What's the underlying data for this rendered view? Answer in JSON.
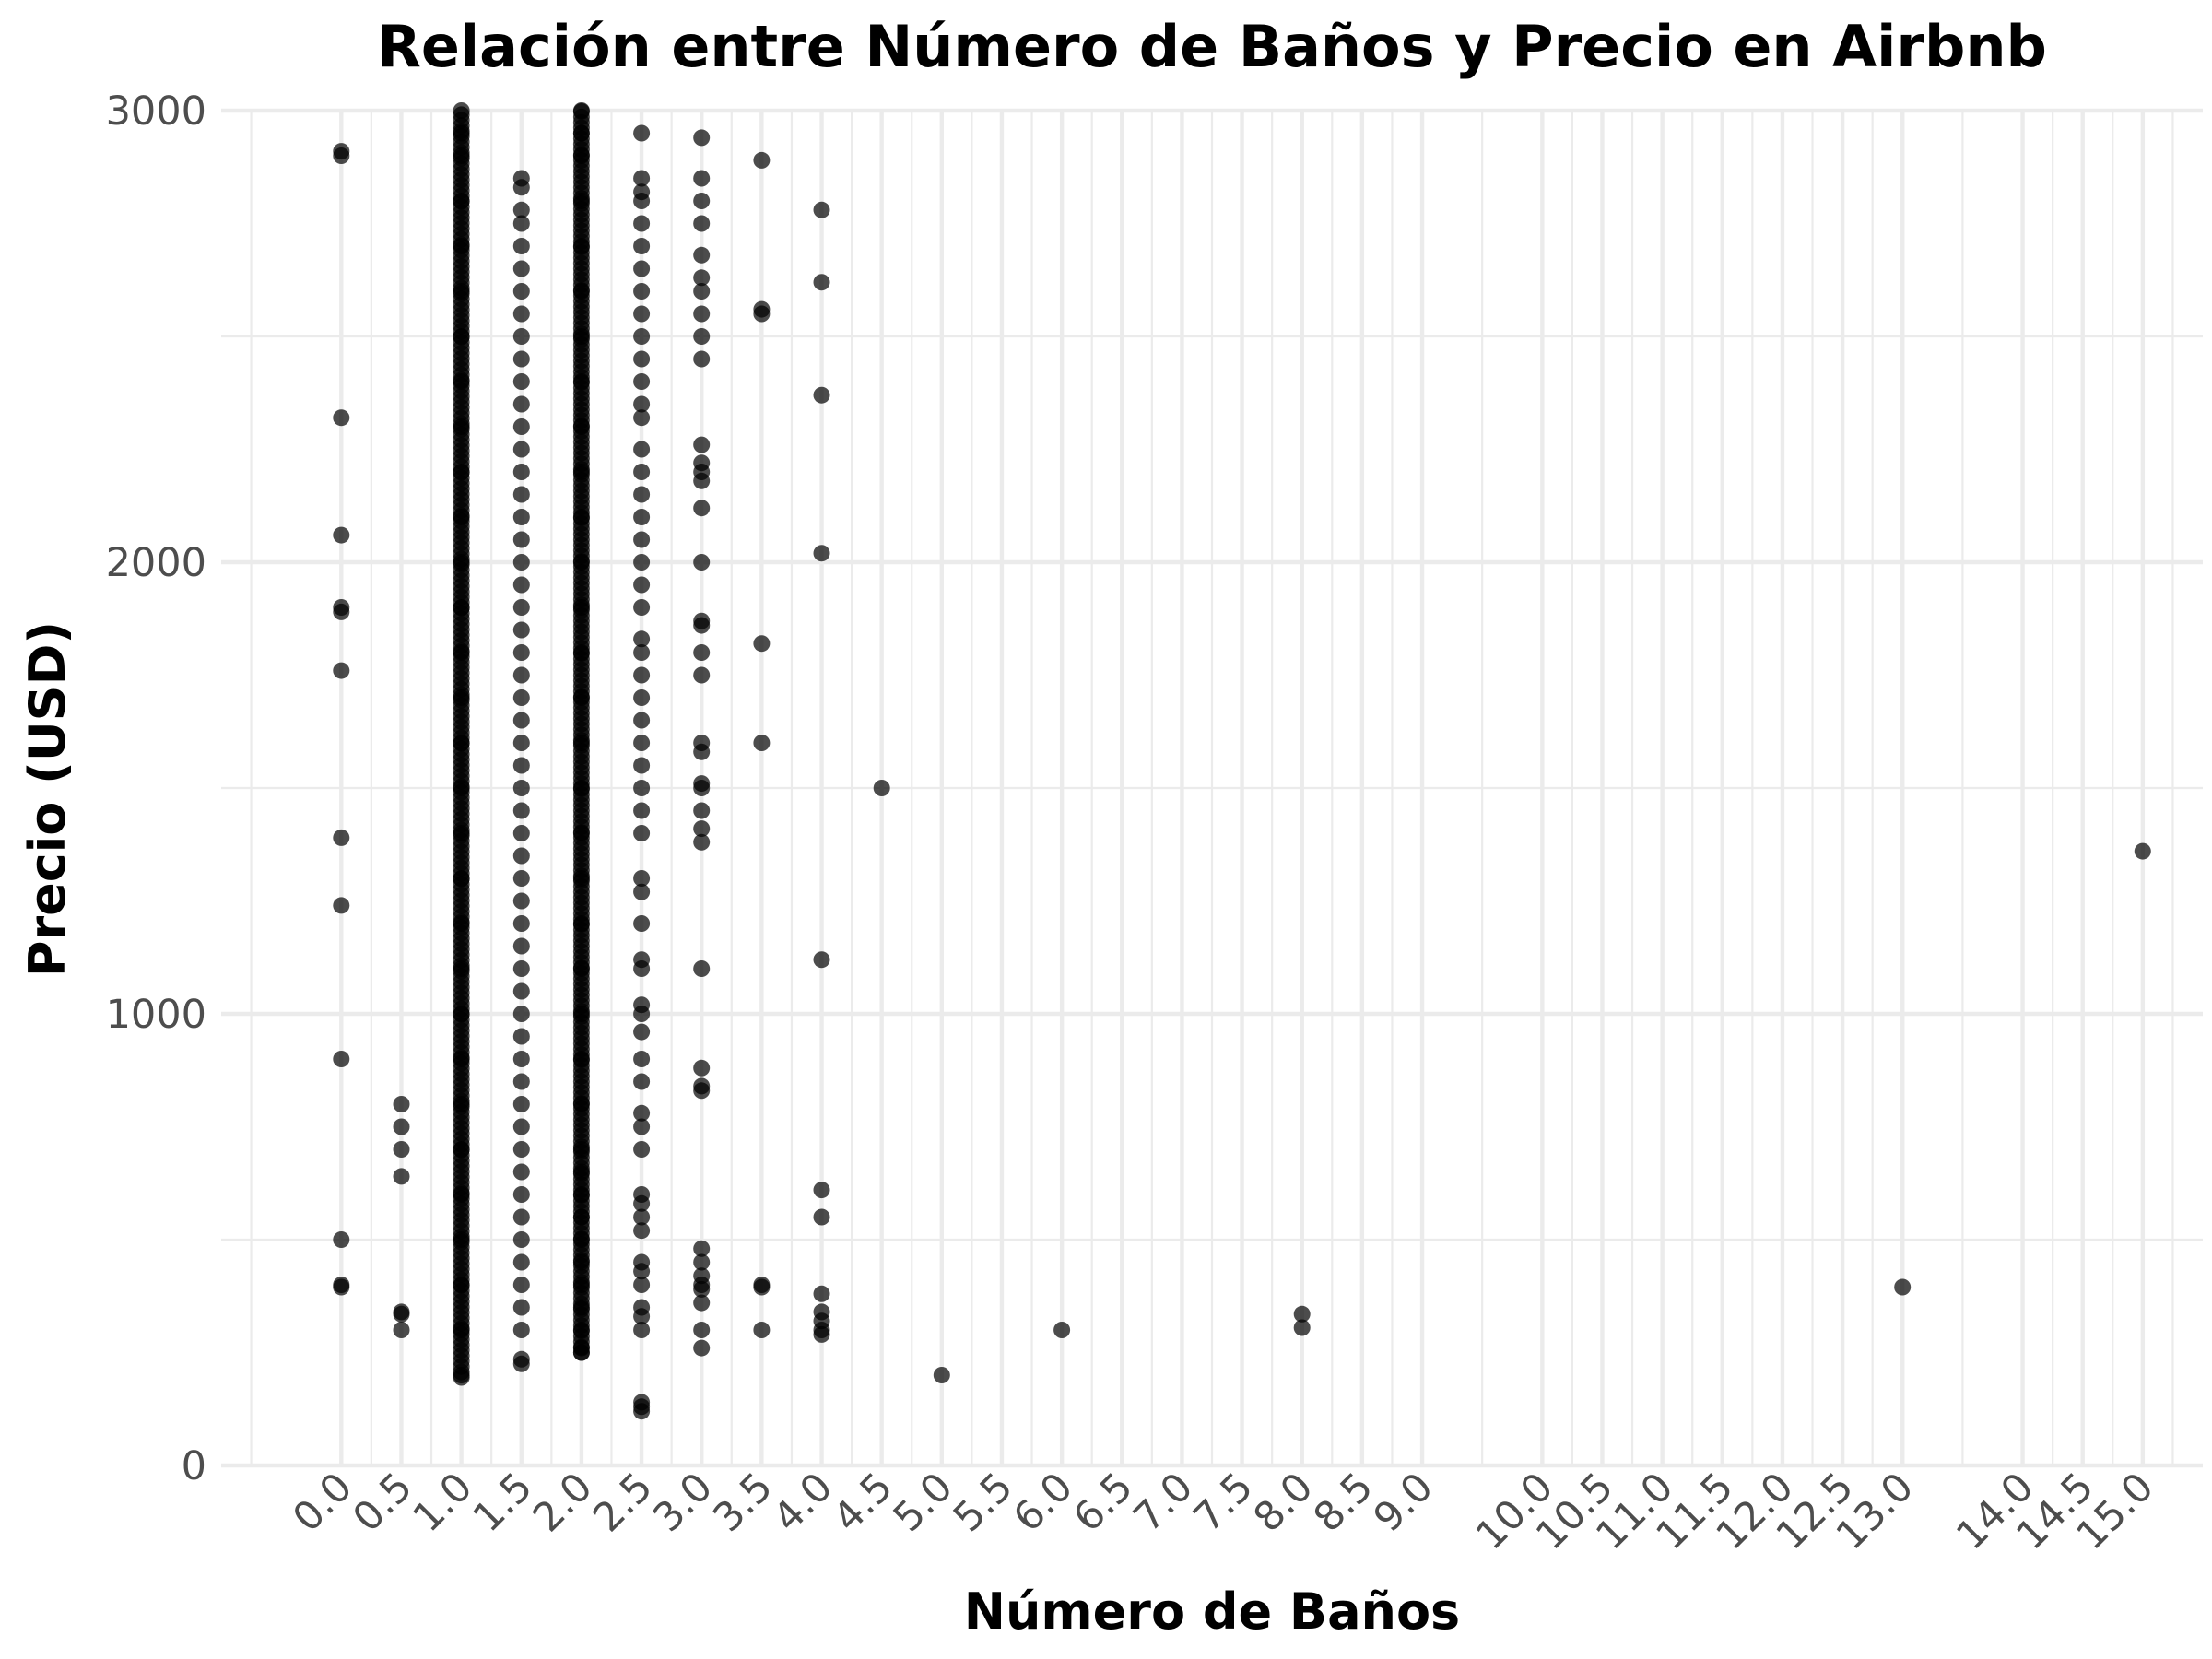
{
  "chart_data": {
    "type": "scatter",
    "title": "Relación entre Número de Baños y Precio en Airbnb",
    "xlabel": "Número de Baños",
    "ylabel": "Precio (USD)",
    "ylim": [
      0,
      3000
    ],
    "xlim": [
      -1.0,
      15.5
    ],
    "grid": true,
    "legend": "none",
    "x_ticks": [
      "0.0",
      "0.5",
      "1.0",
      "1.5",
      "2.0",
      "2.5",
      "3.0",
      "3.5",
      "4.0",
      "4.5",
      "5.0",
      "5.5",
      "6.0",
      "6.5",
      "7.0",
      "7.5",
      "8.0",
      "8.5",
      "9.0",
      "10.0",
      "10.5",
      "11.0",
      "11.5",
      "12.0",
      "12.5",
      "13.0",
      "14.0",
      "14.5",
      "15.0"
    ],
    "y_ticks": [
      "0",
      "1000",
      "2000",
      "3000"
    ],
    "point_color": "#000000",
    "points": [
      {
        "x": 0,
        "y": 2910
      },
      {
        "x": 0,
        "y": 2900
      },
      {
        "x": 0,
        "y": 2320
      },
      {
        "x": 0,
        "y": 2060
      },
      {
        "x": 0,
        "y": 1900
      },
      {
        "x": 0,
        "y": 1890
      },
      {
        "x": 0,
        "y": 1760
      },
      {
        "x": 0,
        "y": 1390
      },
      {
        "x": 0,
        "y": 1240
      },
      {
        "x": 0,
        "y": 900
      },
      {
        "x": 0,
        "y": 500
      },
      {
        "x": 0,
        "y": 400
      },
      {
        "x": 0,
        "y": 395
      },
      {
        "x": 0.5,
        "y": 800
      },
      {
        "x": 0.5,
        "y": 750
      },
      {
        "x": 0.5,
        "y": 700
      },
      {
        "x": 0.5,
        "y": 640
      },
      {
        "x": 0.5,
        "y": 340
      },
      {
        "x": 0.5,
        "y": 335
      },
      {
        "x": 0.5,
        "y": 300
      },
      {
        "x": 1.0,
        "y": 3000
      },
      {
        "x": 1.0,
        "y": 2950
      },
      {
        "x": 1.0,
        "y": 2900
      },
      {
        "x": 1.0,
        "y": 2800
      },
      {
        "x": 1.0,
        "y": 2700
      },
      {
        "x": 1.0,
        "y": 2600
      },
      {
        "x": 1.0,
        "y": 2500
      },
      {
        "x": 1.0,
        "y": 2400
      },
      {
        "x": 1.0,
        "y": 2300
      },
      {
        "x": 1.0,
        "y": 2200
      },
      {
        "x": 1.0,
        "y": 2100
      },
      {
        "x": 1.0,
        "y": 2000
      },
      {
        "x": 1.0,
        "y": 1900
      },
      {
        "x": 1.0,
        "y": 1800
      },
      {
        "x": 1.0,
        "y": 1700
      },
      {
        "x": 1.0,
        "y": 1600
      },
      {
        "x": 1.0,
        "y": 1500
      },
      {
        "x": 1.0,
        "y": 1400
      },
      {
        "x": 1.0,
        "y": 1300
      },
      {
        "x": 1.0,
        "y": 1200
      },
      {
        "x": 1.0,
        "y": 1100
      },
      {
        "x": 1.0,
        "y": 1000
      },
      {
        "x": 1.0,
        "y": 900
      },
      {
        "x": 1.0,
        "y": 800
      },
      {
        "x": 1.0,
        "y": 700
      },
      {
        "x": 1.0,
        "y": 600
      },
      {
        "x": 1.0,
        "y": 500
      },
      {
        "x": 1.0,
        "y": 400
      },
      {
        "x": 1.0,
        "y": 300
      },
      {
        "x": 1.0,
        "y": 200
      },
      {
        "x": 1.5,
        "y": 2850
      },
      {
        "x": 1.5,
        "y": 2830
      },
      {
        "x": 1.5,
        "y": 2780
      },
      {
        "x": 1.5,
        "y": 2750
      },
      {
        "x": 1.5,
        "y": 2700
      },
      {
        "x": 1.5,
        "y": 2650
      },
      {
        "x": 1.5,
        "y": 2600
      },
      {
        "x": 1.5,
        "y": 2550
      },
      {
        "x": 1.5,
        "y": 2500
      },
      {
        "x": 1.5,
        "y": 2450
      },
      {
        "x": 1.5,
        "y": 2400
      },
      {
        "x": 1.5,
        "y": 2350
      },
      {
        "x": 1.5,
        "y": 2300
      },
      {
        "x": 1.5,
        "y": 2250
      },
      {
        "x": 1.5,
        "y": 2200
      },
      {
        "x": 1.5,
        "y": 2150
      },
      {
        "x": 1.5,
        "y": 2100
      },
      {
        "x": 1.5,
        "y": 2050
      },
      {
        "x": 1.5,
        "y": 2000
      },
      {
        "x": 1.5,
        "y": 1950
      },
      {
        "x": 1.5,
        "y": 1900
      },
      {
        "x": 1.5,
        "y": 1850
      },
      {
        "x": 1.5,
        "y": 1800
      },
      {
        "x": 1.5,
        "y": 1750
      },
      {
        "x": 1.5,
        "y": 1700
      },
      {
        "x": 1.5,
        "y": 1650
      },
      {
        "x": 1.5,
        "y": 1600
      },
      {
        "x": 1.5,
        "y": 1550
      },
      {
        "x": 1.5,
        "y": 1500
      },
      {
        "x": 1.5,
        "y": 1450
      },
      {
        "x": 1.5,
        "y": 1400
      },
      {
        "x": 1.5,
        "y": 1350
      },
      {
        "x": 1.5,
        "y": 1300
      },
      {
        "x": 1.5,
        "y": 1250
      },
      {
        "x": 1.5,
        "y": 1200
      },
      {
        "x": 1.5,
        "y": 1150
      },
      {
        "x": 1.5,
        "y": 1100
      },
      {
        "x": 1.5,
        "y": 1050
      },
      {
        "x": 1.5,
        "y": 1000
      },
      {
        "x": 1.5,
        "y": 950
      },
      {
        "x": 1.5,
        "y": 900
      },
      {
        "x": 1.5,
        "y": 850
      },
      {
        "x": 1.5,
        "y": 800
      },
      {
        "x": 1.5,
        "y": 750
      },
      {
        "x": 1.5,
        "y": 700
      },
      {
        "x": 1.5,
        "y": 650
      },
      {
        "x": 1.5,
        "y": 600
      },
      {
        "x": 1.5,
        "y": 550
      },
      {
        "x": 1.5,
        "y": 500
      },
      {
        "x": 1.5,
        "y": 450
      },
      {
        "x": 1.5,
        "y": 400
      },
      {
        "x": 1.5,
        "y": 350
      },
      {
        "x": 1.5,
        "y": 300
      },
      {
        "x": 1.5,
        "y": 235
      },
      {
        "x": 1.5,
        "y": 225
      },
      {
        "x": 2.0,
        "y": 3000
      },
      {
        "x": 2.0,
        "y": 2950
      },
      {
        "x": 2.0,
        "y": 2900
      },
      {
        "x": 2.0,
        "y": 2800
      },
      {
        "x": 2.0,
        "y": 2700
      },
      {
        "x": 2.0,
        "y": 2600
      },
      {
        "x": 2.0,
        "y": 2500
      },
      {
        "x": 2.0,
        "y": 2400
      },
      {
        "x": 2.0,
        "y": 2300
      },
      {
        "x": 2.0,
        "y": 2200
      },
      {
        "x": 2.0,
        "y": 2100
      },
      {
        "x": 2.0,
        "y": 2000
      },
      {
        "x": 2.0,
        "y": 1900
      },
      {
        "x": 2.0,
        "y": 1800
      },
      {
        "x": 2.0,
        "y": 1700
      },
      {
        "x": 2.0,
        "y": 1600
      },
      {
        "x": 2.0,
        "y": 1500
      },
      {
        "x": 2.0,
        "y": 1400
      },
      {
        "x": 2.0,
        "y": 1300
      },
      {
        "x": 2.0,
        "y": 1200
      },
      {
        "x": 2.0,
        "y": 1100
      },
      {
        "x": 2.0,
        "y": 1000
      },
      {
        "x": 2.0,
        "y": 900
      },
      {
        "x": 2.0,
        "y": 800
      },
      {
        "x": 2.0,
        "y": 700
      },
      {
        "x": 2.0,
        "y": 650
      },
      {
        "x": 2.0,
        "y": 600
      },
      {
        "x": 2.0,
        "y": 550
      },
      {
        "x": 2.0,
        "y": 500
      },
      {
        "x": 2.0,
        "y": 450
      },
      {
        "x": 2.0,
        "y": 400
      },
      {
        "x": 2.0,
        "y": 350
      },
      {
        "x": 2.0,
        "y": 300
      },
      {
        "x": 2.0,
        "y": 260
      },
      {
        "x": 2.0,
        "y": 250
      },
      {
        "x": 2.5,
        "y": 2950
      },
      {
        "x": 2.5,
        "y": 2850
      },
      {
        "x": 2.5,
        "y": 2820
      },
      {
        "x": 2.5,
        "y": 2800
      },
      {
        "x": 2.5,
        "y": 2750
      },
      {
        "x": 2.5,
        "y": 2700
      },
      {
        "x": 2.5,
        "y": 2650
      },
      {
        "x": 2.5,
        "y": 2600
      },
      {
        "x": 2.5,
        "y": 2550
      },
      {
        "x": 2.5,
        "y": 2500
      },
      {
        "x": 2.5,
        "y": 2450
      },
      {
        "x": 2.5,
        "y": 2400
      },
      {
        "x": 2.5,
        "y": 2350
      },
      {
        "x": 2.5,
        "y": 2320
      },
      {
        "x": 2.5,
        "y": 2250
      },
      {
        "x": 2.5,
        "y": 2200
      },
      {
        "x": 2.5,
        "y": 2150
      },
      {
        "x": 2.5,
        "y": 2100
      },
      {
        "x": 2.5,
        "y": 2050
      },
      {
        "x": 2.5,
        "y": 2000
      },
      {
        "x": 2.5,
        "y": 1950
      },
      {
        "x": 2.5,
        "y": 1900
      },
      {
        "x": 2.5,
        "y": 1830
      },
      {
        "x": 2.5,
        "y": 1800
      },
      {
        "x": 2.5,
        "y": 1750
      },
      {
        "x": 2.5,
        "y": 1700
      },
      {
        "x": 2.5,
        "y": 1650
      },
      {
        "x": 2.5,
        "y": 1600
      },
      {
        "x": 2.5,
        "y": 1550
      },
      {
        "x": 2.5,
        "y": 1500
      },
      {
        "x": 2.5,
        "y": 1450
      },
      {
        "x": 2.5,
        "y": 1400
      },
      {
        "x": 2.5,
        "y": 1300
      },
      {
        "x": 2.5,
        "y": 1270
      },
      {
        "x": 2.5,
        "y": 1200
      },
      {
        "x": 2.5,
        "y": 1120
      },
      {
        "x": 2.5,
        "y": 1100
      },
      {
        "x": 2.5,
        "y": 1020
      },
      {
        "x": 2.5,
        "y": 1000
      },
      {
        "x": 2.5,
        "y": 960
      },
      {
        "x": 2.5,
        "y": 900
      },
      {
        "x": 2.5,
        "y": 850
      },
      {
        "x": 2.5,
        "y": 780
      },
      {
        "x": 2.5,
        "y": 750
      },
      {
        "x": 2.5,
        "y": 700
      },
      {
        "x": 2.5,
        "y": 600
      },
      {
        "x": 2.5,
        "y": 580
      },
      {
        "x": 2.5,
        "y": 550
      },
      {
        "x": 2.5,
        "y": 520
      },
      {
        "x": 2.5,
        "y": 450
      },
      {
        "x": 2.5,
        "y": 430
      },
      {
        "x": 2.5,
        "y": 400
      },
      {
        "x": 2.5,
        "y": 350
      },
      {
        "x": 2.5,
        "y": 330
      },
      {
        "x": 2.5,
        "y": 300
      },
      {
        "x": 2.5,
        "y": 140
      },
      {
        "x": 2.5,
        "y": 130
      },
      {
        "x": 2.5,
        "y": 120
      },
      {
        "x": 3.0,
        "y": 2940
      },
      {
        "x": 3.0,
        "y": 2850
      },
      {
        "x": 3.0,
        "y": 2800
      },
      {
        "x": 3.0,
        "y": 2750
      },
      {
        "x": 3.0,
        "y": 2680
      },
      {
        "x": 3.0,
        "y": 2630
      },
      {
        "x": 3.0,
        "y": 2600
      },
      {
        "x": 3.0,
        "y": 2550
      },
      {
        "x": 3.0,
        "y": 2500
      },
      {
        "x": 3.0,
        "y": 2450
      },
      {
        "x": 3.0,
        "y": 2260
      },
      {
        "x": 3.0,
        "y": 2220
      },
      {
        "x": 3.0,
        "y": 2200
      },
      {
        "x": 3.0,
        "y": 2180
      },
      {
        "x": 3.0,
        "y": 2120
      },
      {
        "x": 3.0,
        "y": 2000
      },
      {
        "x": 3.0,
        "y": 1870
      },
      {
        "x": 3.0,
        "y": 1860
      },
      {
        "x": 3.0,
        "y": 1800
      },
      {
        "x": 3.0,
        "y": 1750
      },
      {
        "x": 3.0,
        "y": 1600
      },
      {
        "x": 3.0,
        "y": 1580
      },
      {
        "x": 3.0,
        "y": 1510
      },
      {
        "x": 3.0,
        "y": 1500
      },
      {
        "x": 3.0,
        "y": 1450
      },
      {
        "x": 3.0,
        "y": 1410
      },
      {
        "x": 3.0,
        "y": 1380
      },
      {
        "x": 3.0,
        "y": 1100
      },
      {
        "x": 3.0,
        "y": 880
      },
      {
        "x": 3.0,
        "y": 840
      },
      {
        "x": 3.0,
        "y": 830
      },
      {
        "x": 3.0,
        "y": 480
      },
      {
        "x": 3.0,
        "y": 450
      },
      {
        "x": 3.0,
        "y": 420
      },
      {
        "x": 3.0,
        "y": 400
      },
      {
        "x": 3.0,
        "y": 390
      },
      {
        "x": 3.0,
        "y": 360
      },
      {
        "x": 3.0,
        "y": 300
      },
      {
        "x": 3.0,
        "y": 260
      },
      {
        "x": 3.5,
        "y": 2890
      },
      {
        "x": 3.5,
        "y": 2560
      },
      {
        "x": 3.5,
        "y": 2550
      },
      {
        "x": 3.5,
        "y": 1820
      },
      {
        "x": 3.5,
        "y": 1600
      },
      {
        "x": 3.5,
        "y": 400
      },
      {
        "x": 3.5,
        "y": 395
      },
      {
        "x": 3.5,
        "y": 300
      },
      {
        "x": 4.0,
        "y": 2780
      },
      {
        "x": 4.0,
        "y": 2620
      },
      {
        "x": 4.0,
        "y": 2370
      },
      {
        "x": 4.0,
        "y": 2020
      },
      {
        "x": 4.0,
        "y": 1120
      },
      {
        "x": 4.0,
        "y": 610
      },
      {
        "x": 4.0,
        "y": 550
      },
      {
        "x": 4.0,
        "y": 380
      },
      {
        "x": 4.0,
        "y": 340
      },
      {
        "x": 4.0,
        "y": 320
      },
      {
        "x": 4.0,
        "y": 300
      },
      {
        "x": 4.0,
        "y": 290
      },
      {
        "x": 4.5,
        "y": 1500
      },
      {
        "x": 5.0,
        "y": 200
      },
      {
        "x": 6.0,
        "y": 300
      },
      {
        "x": 8.0,
        "y": 335
      },
      {
        "x": 8.0,
        "y": 305
      },
      {
        "x": 13.0,
        "y": 395
      },
      {
        "x": 15.0,
        "y": 1360
      }
    ]
  }
}
